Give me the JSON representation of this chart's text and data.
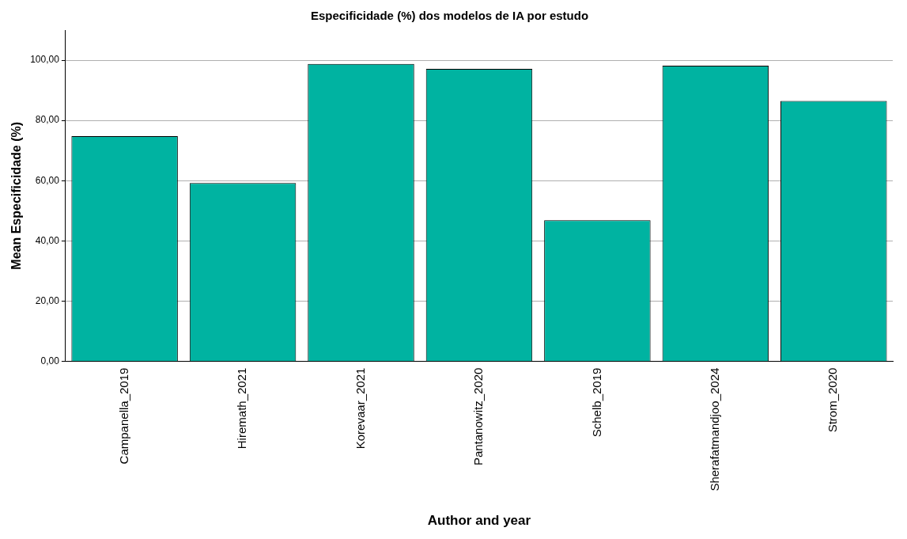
{
  "chart_data": {
    "type": "bar",
    "title": "Especificidade (%) dos modelos de IA por estudo",
    "xlabel": "Author and year",
    "ylabel": "Mean Especificidade (%)",
    "categories": [
      "Campanella_2019",
      "Hiremath_2021",
      "Korevaar_2021",
      "Pantanowitz_2020",
      "Schelb_2019",
      "Sherafatmandjoo_2024",
      "Strom_2020"
    ],
    "values": [
      74.8,
      59.2,
      98.8,
      97.1,
      46.9,
      98.2,
      86.5
    ],
    "color": "#00b3a1",
    "ylim": [
      0,
      110
    ],
    "yticks": [
      {
        "value": 0,
        "label": "0,00"
      },
      {
        "value": 20,
        "label": "20,00"
      },
      {
        "value": 40,
        "label": "40,00"
      },
      {
        "value": 60,
        "label": "60,00"
      },
      {
        "value": 80,
        "label": "80,00"
      },
      {
        "value": 100,
        "label": "100,00"
      }
    ],
    "grid": "y"
  }
}
